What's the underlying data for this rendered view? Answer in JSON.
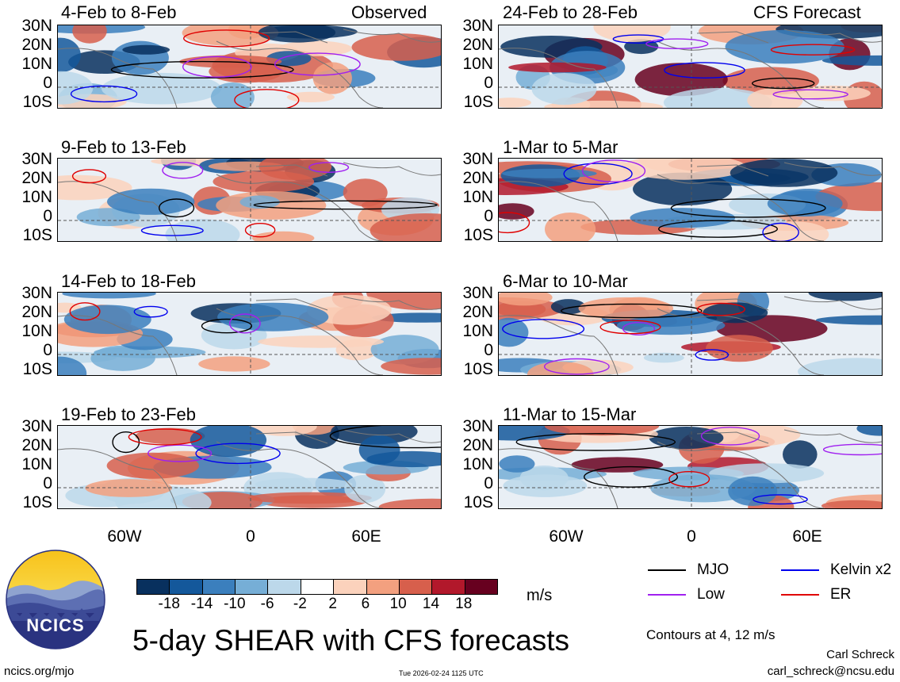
{
  "panels": {
    "left_header_right": "Observed",
    "right_header_right": "CFS Forecast",
    "left": [
      {
        "title": "4-Feb to 8-Feb"
      },
      {
        "title": "9-Feb to 13-Feb"
      },
      {
        "title": "14-Feb to 18-Feb"
      },
      {
        "title": "19-Feb to 23-Feb"
      }
    ],
    "right": [
      {
        "title": "24-Feb to 28-Feb"
      },
      {
        "title": "1-Mar to 5-Mar"
      },
      {
        "title": "6-Mar to 10-Mar"
      },
      {
        "title": "11-Mar to 15-Mar"
      }
    ]
  },
  "axes": {
    "lat_ticks": [
      "30N",
      "20N",
      "10N",
      "0",
      "10S"
    ],
    "lon_ticks": [
      "60W",
      "0",
      "60E"
    ]
  },
  "colorbar": {
    "colors": [
      "#08305e",
      "#14589b",
      "#3b7fbd",
      "#76aed6",
      "#bcd8ea",
      "#ffffff",
      "#fbd2bc",
      "#f3a07f",
      "#d75f4c",
      "#b2182b",
      "#67001f"
    ],
    "labels": [
      "-18",
      "-14",
      "-10",
      "-6",
      "-2",
      "2",
      "6",
      "10",
      "14",
      "18"
    ],
    "unit": "m/s"
  },
  "legend": {
    "items": [
      {
        "label": "MJO",
        "color": "#000000"
      },
      {
        "label": "Kelvin x2",
        "color": "#0000ee"
      },
      {
        "label": "Low",
        "color": "#a020f0"
      },
      {
        "label": "ER",
        "color": "#e00000"
      }
    ],
    "contours_note": "Contours at 4, 12 m/s"
  },
  "title": "5-day SHEAR with CFS forecasts",
  "logo_text": "NCICS",
  "footer": {
    "url": "ncics.org/mjo",
    "timestamp": "Tue 2026-02-24 1125 UTC",
    "author": "Carl Schreck",
    "email": "carl_schreck@ncsu.edu"
  },
  "chart_data": [
    {
      "type": "heatmap",
      "title": "4-Feb to 8-Feb",
      "label": "Observed",
      "variable": "5-day vertical wind shear anomaly",
      "units": "m/s",
      "lat_range": [
        "10S",
        "30N"
      ],
      "lon_range": [
        "100W",
        "100E"
      ]
    },
    {
      "type": "heatmap",
      "title": "9-Feb to 13-Feb",
      "variable": "5-day vertical wind shear anomaly",
      "units": "m/s"
    },
    {
      "type": "heatmap",
      "title": "14-Feb to 18-Feb",
      "variable": "5-day vertical wind shear anomaly",
      "units": "m/s"
    },
    {
      "type": "heatmap",
      "title": "19-Feb to 23-Feb",
      "variable": "5-day vertical wind shear anomaly",
      "units": "m/s"
    },
    {
      "type": "heatmap",
      "title": "24-Feb to 28-Feb",
      "label": "CFS Forecast",
      "variable": "5-day vertical wind shear anomaly",
      "units": "m/s"
    },
    {
      "type": "heatmap",
      "title": "1-Mar to 5-Mar",
      "variable": "5-day vertical wind shear anomaly",
      "units": "m/s"
    },
    {
      "type": "heatmap",
      "title": "6-Mar to 10-Mar",
      "variable": "5-day vertical wind shear anomaly",
      "units": "m/s"
    },
    {
      "type": "heatmap",
      "title": "11-Mar to 15-Mar",
      "variable": "5-day vertical wind shear anomaly",
      "units": "m/s"
    }
  ]
}
